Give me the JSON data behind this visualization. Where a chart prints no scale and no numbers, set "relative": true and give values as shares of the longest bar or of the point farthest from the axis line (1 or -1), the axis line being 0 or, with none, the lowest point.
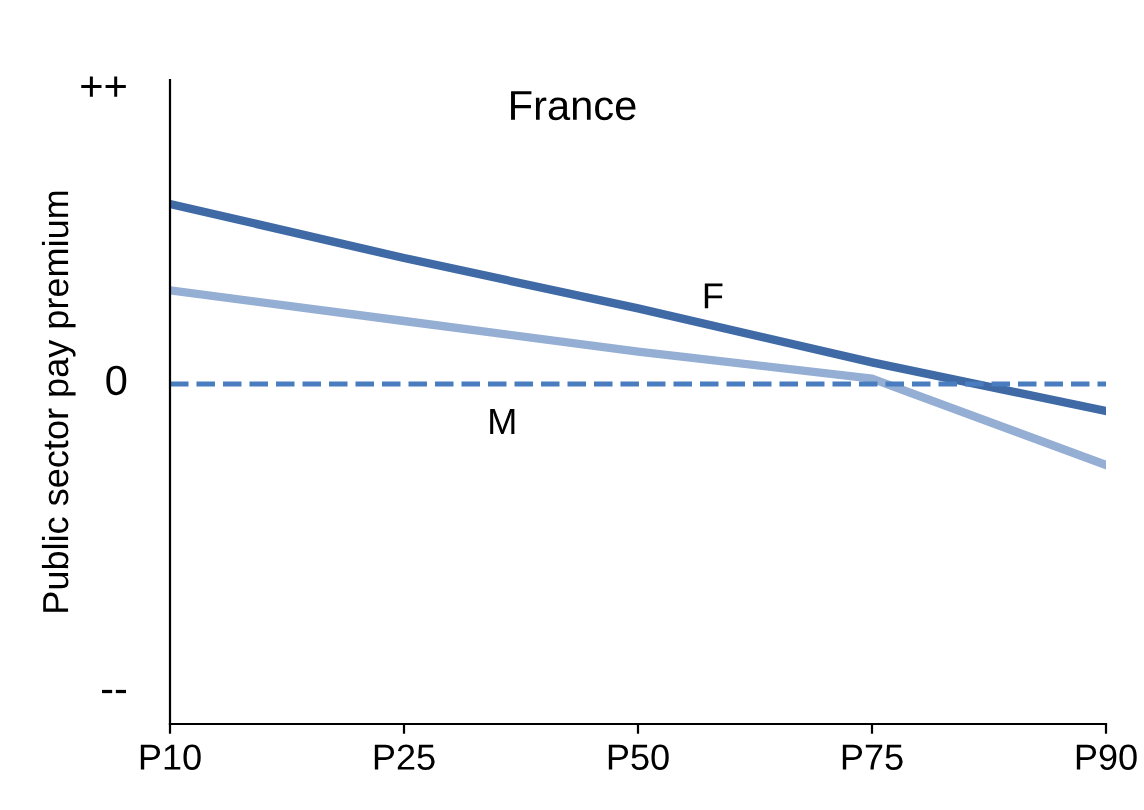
{
  "chart_data": {
    "type": "line",
    "title": "France",
    "ylabel": "Public sector pay premium",
    "relative": true,
    "categories": [
      "P10",
      "P25",
      "P50",
      "P75",
      "P90"
    ],
    "series": [
      {
        "color": "#3f6aa5",
        "values": [
          1,
          0.7,
          0.42,
          0.12,
          -0.15
        ]
      },
      {
        "color": "#95aed3",
        "values": [
          0.52,
          0.35,
          0.18,
          0.03,
          -0.45
        ]
      }
    ],
    "ref_lines": [
      {
        "axis": "y",
        "value": 0,
        "color": "#4a7cc0",
        "line_style": "dashed"
      }
    ],
    "annotations": [
      "F",
      "M",
      "++",
      "0",
      "--"
    ],
    "grid": false,
    "legend": false,
    "marker": "none",
    "line_style": "solid"
  }
}
